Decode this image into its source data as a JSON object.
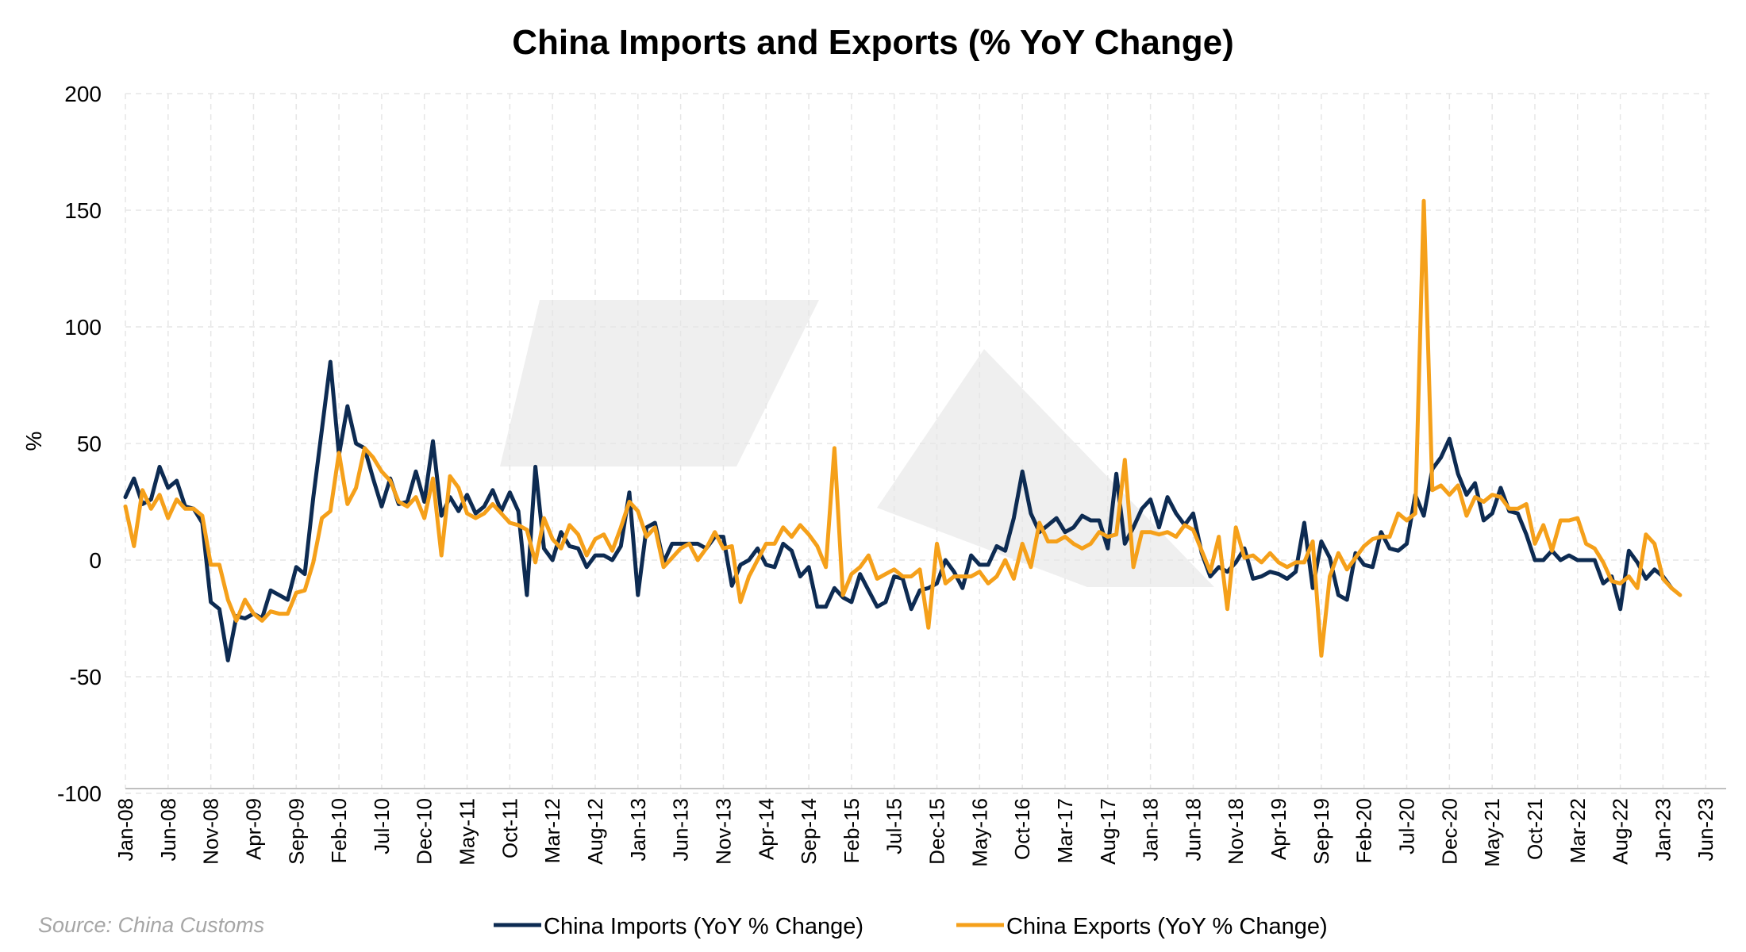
{
  "chart_data": {
    "type": "line",
    "title": "China Imports and Exports (% YoY Change)",
    "ylabel": "%",
    "xlabel": "",
    "ylim": [
      -100,
      200
    ],
    "yticks": [
      -100,
      -50,
      0,
      50,
      100,
      150,
      200
    ],
    "grid": true,
    "legend_position": "bottom",
    "source": "Source: China Customs",
    "x_start": "2008-01",
    "x_end": "2023-07",
    "x_tick_labels": [
      "Jan-08",
      "Jun-08",
      "Nov-08",
      "Apr-09",
      "Sep-09",
      "Feb-10",
      "Jul-10",
      "Dec-10",
      "May-11",
      "Oct-11",
      "Mar-12",
      "Aug-12",
      "Jan-13",
      "Jun-13",
      "Nov-13",
      "Apr-14",
      "Sep-14",
      "Feb-15",
      "Jul-15",
      "Dec-15",
      "May-16",
      "Oct-16",
      "Mar-17",
      "Aug-17",
      "Jan-18",
      "Jun-18",
      "Nov-18",
      "Apr-19",
      "Sep-19",
      "Feb-20",
      "Jul-20",
      "Dec-20",
      "May-21",
      "Oct-21",
      "Mar-22",
      "Aug-22",
      "Jan-23",
      "Jun-23"
    ],
    "series": [
      {
        "name": "China Imports (YoY % Change)",
        "color": "#0d2b52",
        "values": [
          27,
          35,
          24,
          26,
          40,
          31,
          34,
          23,
          22,
          16,
          -18,
          -21,
          -43,
          -24,
          -25,
          -23,
          -25,
          -13,
          -15,
          -17,
          -3,
          -6,
          27,
          56,
          85,
          45,
          66,
          50,
          48,
          35,
          23,
          35,
          24,
          25,
          38,
          25,
          51,
          19,
          27,
          21,
          28,
          20,
          23,
          30,
          21,
          29,
          21,
          -15,
          40,
          5,
          0,
          12,
          6,
          5,
          -3,
          2,
          2,
          0,
          6,
          29,
          -15,
          14,
          16,
          -1,
          7,
          7,
          7,
          7,
          5,
          10,
          10,
          -11,
          -2,
          0,
          5,
          -2,
          -3,
          7,
          4,
          -7,
          -3,
          -20,
          -20,
          -12,
          -16,
          -18,
          -6,
          -13,
          -20,
          -18,
          -7,
          -8,
          -21,
          -13,
          -12,
          -10,
          0,
          -5,
          -12,
          2,
          -2,
          -2,
          6,
          4,
          18,
          38,
          20,
          12,
          15,
          18,
          12,
          14,
          19,
          17,
          17,
          5,
          37,
          7,
          14,
          22,
          26,
          14,
          27,
          20,
          15,
          20,
          3,
          -7,
          -3,
          -5,
          -1,
          5,
          -8,
          -7,
          -5,
          -6,
          -8,
          -5,
          16,
          -12,
          8,
          1,
          -15,
          -17,
          3,
          -2,
          -3,
          12,
          5,
          4,
          7,
          28,
          19,
          39,
          44,
          52,
          37,
          28,
          33,
          17,
          20,
          31,
          21,
          20,
          11,
          0,
          0,
          4,
          0,
          2,
          0,
          0,
          0,
          -10,
          -7,
          -21,
          4,
          -1,
          -8,
          -4,
          -7,
          -12
        ]
      },
      {
        "name": "China Exports (YoY % Change)",
        "color": "#f5a01a",
        "values": [
          23,
          6,
          30,
          22,
          28,
          18,
          26,
          22,
          22,
          19,
          -2,
          -2,
          -17,
          -26,
          -17,
          -23,
          -26,
          -22,
          -23,
          -23,
          -14,
          -13,
          -1,
          18,
          21,
          46,
          24,
          31,
          48,
          44,
          38,
          34,
          25,
          23,
          27,
          18,
          35,
          2,
          36,
          31,
          20,
          18,
          20,
          24,
          20,
          16,
          15,
          13,
          -1,
          18,
          9,
          5,
          15,
          11,
          2,
          9,
          11,
          4,
          14,
          25,
          21,
          10,
          14,
          -3,
          1,
          5,
          7,
          0,
          5,
          12,
          5,
          6,
          -18,
          -7,
          0,
          7,
          7,
          14,
          10,
          15,
          11,
          6,
          -3,
          48,
          -15,
          -6,
          -3,
          2,
          -8,
          -6,
          -4,
          -7,
          -7,
          -4,
          -29,
          7,
          -10,
          -7,
          -7,
          -7,
          -5,
          -10,
          -7,
          0,
          -8,
          7,
          -3,
          16,
          8,
          8,
          10,
          7,
          5,
          7,
          12,
          10,
          11,
          43,
          -3,
          12,
          12,
          11,
          12,
          10,
          15,
          13,
          4,
          -5,
          10,
          -21,
          14,
          1,
          2,
          -1,
          3,
          -1,
          -3,
          -1,
          -1,
          8,
          -41,
          -7,
          3,
          -4,
          1,
          6,
          9,
          10,
          10,
          20,
          17,
          20,
          154,
          30,
          32,
          28,
          32,
          19,
          27,
          25,
          28,
          27,
          22,
          22,
          24,
          7,
          15,
          4,
          17,
          17,
          18,
          7,
          5,
          -1,
          -9,
          -10,
          -7,
          -12,
          11,
          7,
          -8,
          -12,
          -15
        ]
      }
    ]
  }
}
